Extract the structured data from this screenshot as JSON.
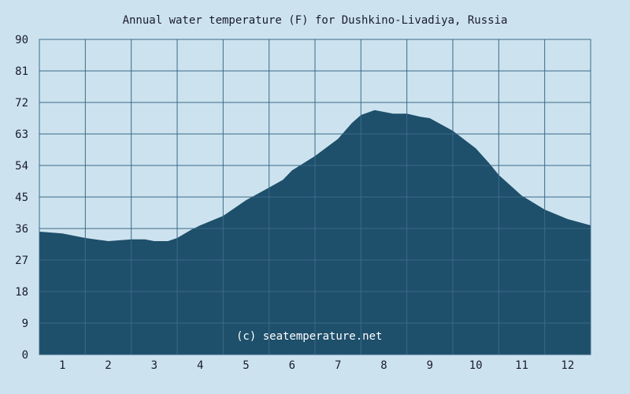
{
  "chart_data": {
    "type": "area",
    "title": "Annual water temperature (F) for Dushkino-Livadiya, Russia",
    "xlabel": "",
    "ylabel": "",
    "categories": [
      "1",
      "2",
      "3",
      "4",
      "5",
      "6",
      "7",
      "8",
      "9",
      "10",
      "11",
      "12"
    ],
    "xlim": [
      0.5,
      12.5
    ],
    "ylim": [
      0,
      90
    ],
    "yticks": [
      0,
      9,
      18,
      27,
      36,
      45,
      54,
      63,
      72,
      81,
      90
    ],
    "grid": true,
    "x": [
      0.5,
      1.0,
      1.5,
      2.0,
      2.5,
      2.8,
      3.0,
      3.3,
      3.5,
      3.8,
      4.0,
      4.5,
      5.0,
      5.5,
      5.8,
      6.0,
      6.5,
      7.0,
      7.3,
      7.5,
      7.8,
      8.0,
      8.2,
      8.5,
      8.8,
      9.0,
      9.5,
      10.0,
      10.3,
      10.5,
      11.0,
      11.5,
      12.0,
      12.5
    ],
    "values": [
      35.1,
      34.6,
      33.3,
      32.4,
      32.9,
      32.9,
      32.4,
      32.4,
      33.3,
      35.6,
      36.9,
      39.6,
      44.1,
      47.7,
      49.9,
      52.6,
      56.7,
      61.6,
      66.1,
      68.4,
      69.8,
      69.3,
      68.8,
      68.8,
      67.9,
      67.5,
      63.9,
      58.9,
      54.5,
      51.3,
      45.4,
      41.4,
      38.7,
      36.9
    ],
    "colors": {
      "fill": "#1e4f6b",
      "background": "#cce3ef",
      "grid": "#3b6a87",
      "text": "#1a1a2e"
    }
  },
  "watermark": "(c) seatemperature.net"
}
